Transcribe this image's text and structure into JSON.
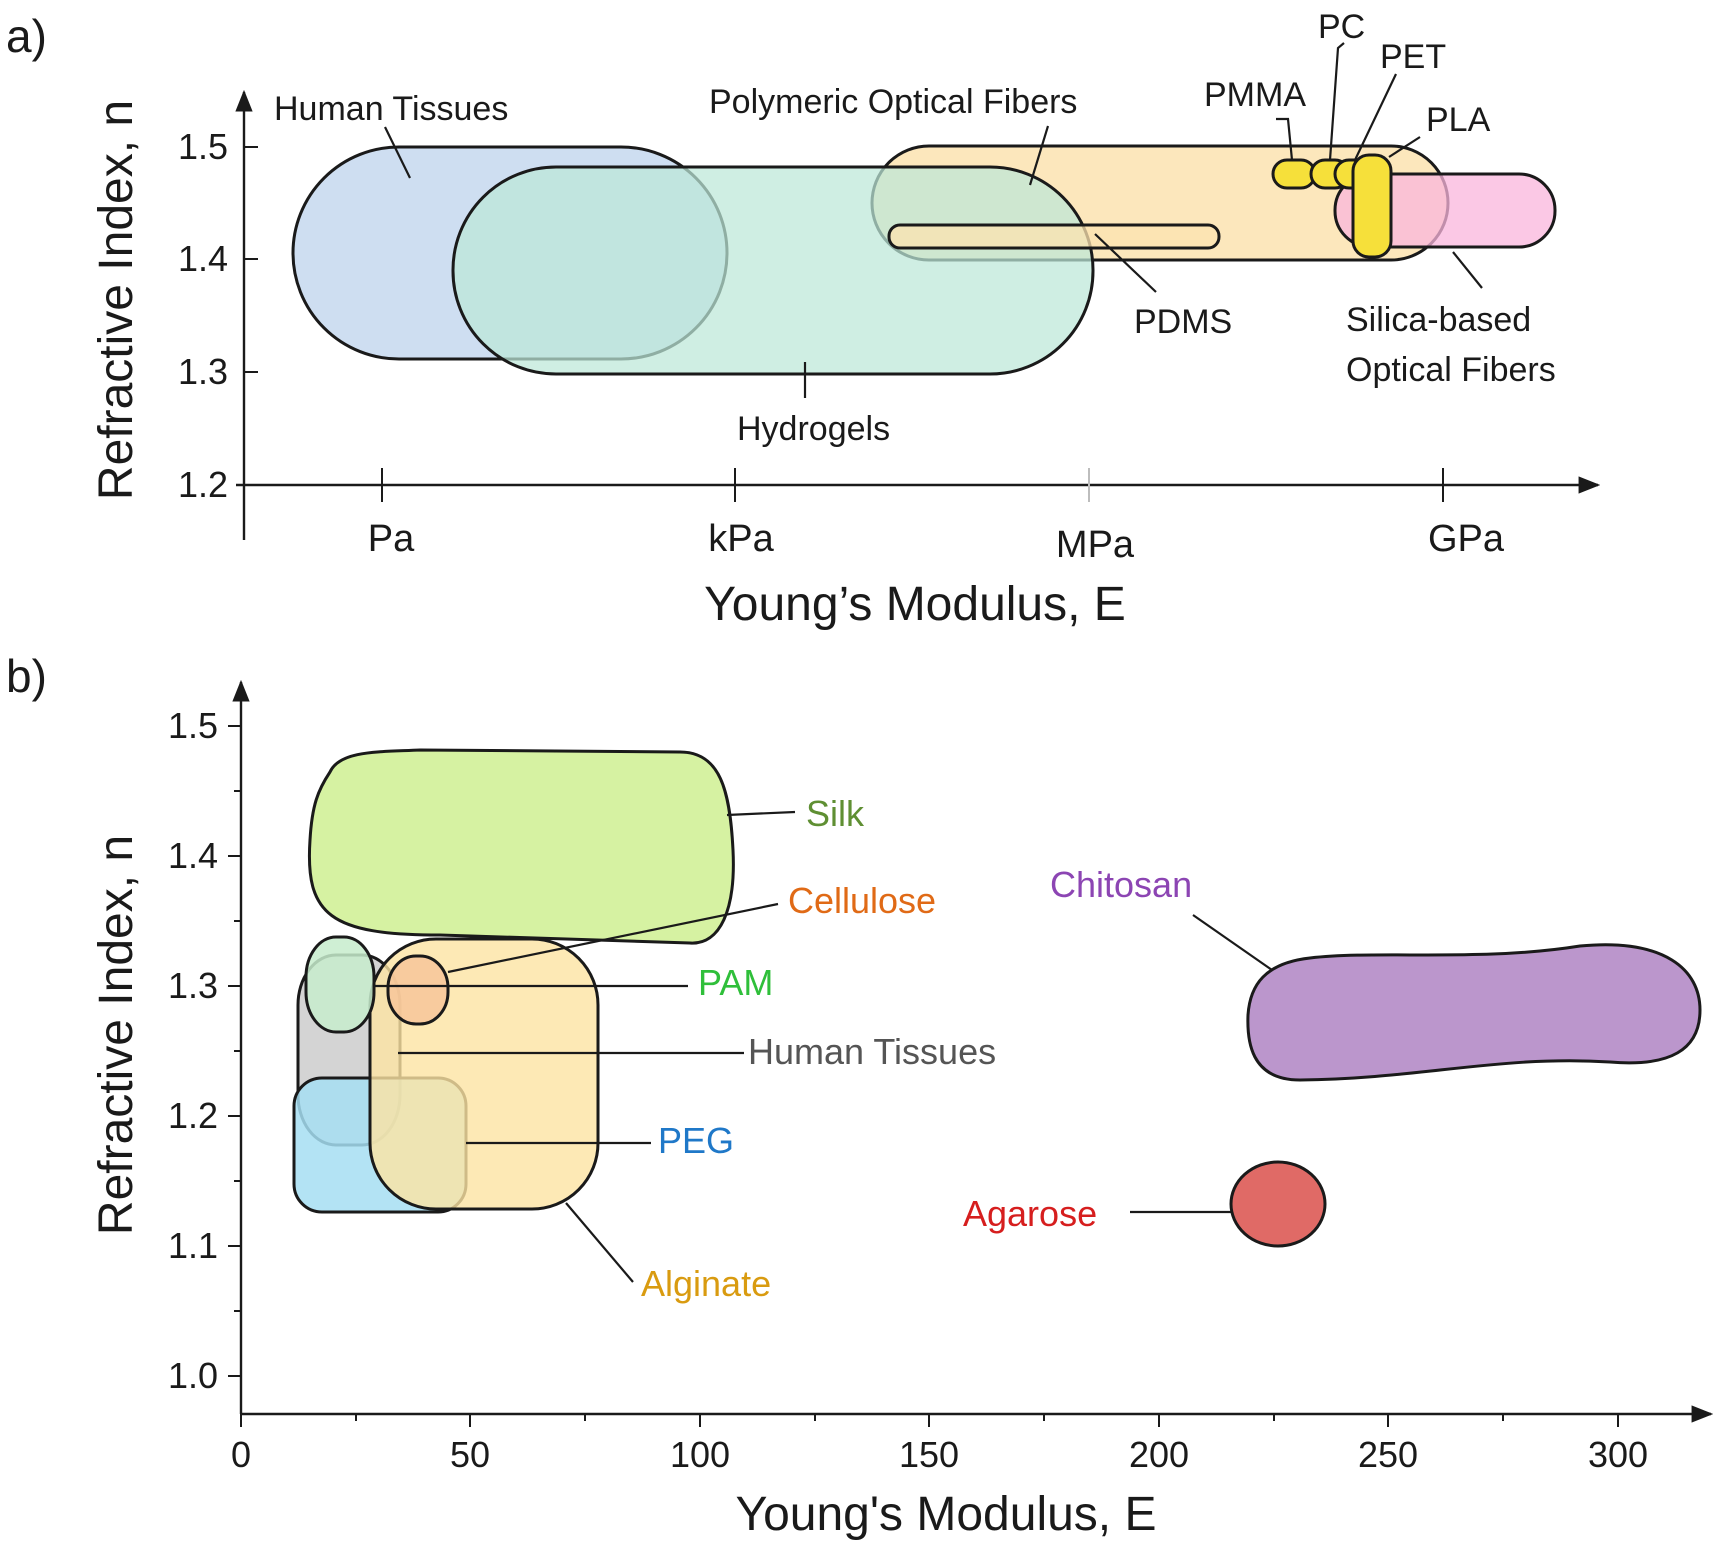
{
  "chart_data": [
    {
      "panel_label": "a)",
      "type": "area",
      "xlabel": "Young’s Modulus, E",
      "ylabel": "Refractive Index, n",
      "x_scale": "log (categorical decades)",
      "x_ticks": [
        "Pa",
        "kPa",
        "MPa",
        "GPa"
      ],
      "y_ticks": [
        "1.2",
        "1.3",
        "1.4",
        "1.5"
      ],
      "ylim": [
        1.2,
        1.55
      ],
      "grid": false,
      "series": [
        {
          "name": "Human Tissues",
          "x_range": [
            "0.8 Pa",
            "≈50 kPa"
          ],
          "y_range": [
            1.31,
            1.5
          ],
          "color": "#c5d8ee"
        },
        {
          "name": "Polymeric Optical Fibers",
          "x_range": [
            "≈10 kPa",
            "≈1 GPa"
          ],
          "y_range": [
            1.4,
            1.5
          ],
          "color": "#fce3b0"
        },
        {
          "name": "Hydrogels",
          "x_range": [
            "≈0.1 kPa",
            "≈1 MPa"
          ],
          "y_range": [
            1.3,
            1.48
          ],
          "color": "#bde7d8"
        },
        {
          "name": "PDMS",
          "x_range": [
            "≈10 kPa",
            "≈100 MPa"
          ],
          "y_range": [
            1.41,
            1.43
          ],
          "color": "#fce3b0"
        },
        {
          "name": "Silica-based Optical Fibers",
          "x_range": [
            "≈0.8 GPa",
            "≈20 GPa"
          ],
          "y_range": [
            1.41,
            1.47
          ],
          "color": "#f9b6dc"
        },
        {
          "name": "PMMA",
          "x": "≈1 GPa",
          "y": 1.475,
          "color": "#f6e03a"
        },
        {
          "name": "PC",
          "x": "≈2 GPa",
          "y": 1.475,
          "color": "#f6e03a"
        },
        {
          "name": "PET",
          "x": "≈3 GPa",
          "y": 1.475,
          "color": "#f6e03a"
        },
        {
          "name": "PLA",
          "x": "≈3.5 GPa",
          "y_range": [
            1.4,
            1.49
          ],
          "color": "#f6e03a"
        }
      ]
    },
    {
      "panel_label": "b)",
      "type": "area",
      "xlabel": "Young's Modulus, E",
      "ylabel": "Refractive Index, n",
      "xlim": [
        0,
        320
      ],
      "ylim": [
        0.97,
        1.52
      ],
      "x_ticks": [
        "0",
        "50",
        "100",
        "150",
        "200",
        "250",
        "300"
      ],
      "y_ticks": [
        "1.0",
        "1.1",
        "1.2",
        "1.3",
        "1.4",
        "1.5"
      ],
      "grid": false,
      "series": [
        {
          "name": "Silk",
          "x_range": [
            16,
            109
          ],
          "y_range": [
            1.33,
            1.48
          ],
          "color": "#d2f19a",
          "label_color": "#5f8f33"
        },
        {
          "name": "Cellulose",
          "x_range": [
            32,
            46
          ],
          "y_range": [
            1.27,
            1.33
          ],
          "color": "#f7c69a",
          "label_color": "#e06a16"
        },
        {
          "name": "PAM",
          "x_range": [
            14,
            29
          ],
          "y_range": [
            1.24,
            1.32
          ],
          "color": "#c7eccd",
          "label_color": "#2fbf3a"
        },
        {
          "name": "Human Tissues",
          "x_range": [
            12,
            35
          ],
          "y_range": [
            1.15,
            1.32
          ],
          "color": "#cccccc",
          "label_color": "#555555"
        },
        {
          "name": "PEG",
          "x_range": [
            12,
            50
          ],
          "y_range": [
            1.14,
            1.22
          ],
          "color": "#a6def2",
          "label_color": "#1f78c8"
        },
        {
          "name": "Alginate",
          "x_range": [
            28,
            78
          ],
          "y_range": [
            1.13,
            1.33
          ],
          "color": "#fde3a2",
          "label_color": "#d99b10"
        },
        {
          "name": "Chitosan",
          "x_range": [
            220,
            320
          ],
          "y_range": [
            1.23,
            1.32
          ],
          "color": "#bb96cc",
          "label_color": "#8c45b3"
        },
        {
          "name": "Agarose",
          "x_range": [
            216,
            237
          ],
          "y_range": [
            1.1,
            1.16
          ],
          "color": "#e06a66",
          "label_color": "#d61e1e"
        }
      ]
    }
  ]
}
